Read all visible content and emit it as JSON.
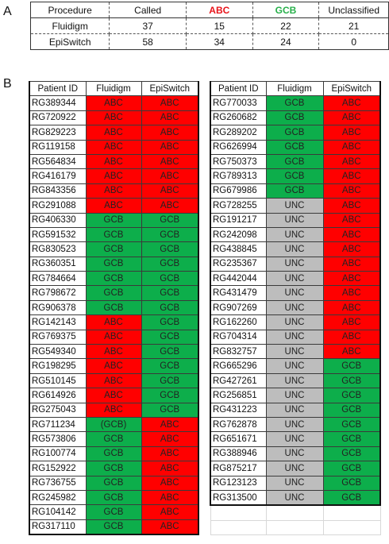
{
  "panel_a": {
    "label": "A",
    "headers": [
      "Procedure",
      "Called",
      "ABC",
      "GCB",
      "Unclassified"
    ],
    "rows": [
      [
        "Fluidigm",
        "37",
        "15",
        "22",
        "21"
      ],
      [
        "EpiSwitch",
        "58",
        "34",
        "24",
        "0"
      ]
    ]
  },
  "panel_b": {
    "label": "B",
    "headers": [
      "Patient ID",
      "Fluidigm",
      "EpiSwitch"
    ],
    "left_rows": [
      [
        "RG389344",
        "ABC",
        "ABC"
      ],
      [
        "RG720922",
        "ABC",
        "ABC"
      ],
      [
        "RG829223",
        "ABC",
        "ABC"
      ],
      [
        "RG119158",
        "ABC",
        "ABC"
      ],
      [
        "RG564834",
        "ABC",
        "ABC"
      ],
      [
        "RG416179",
        "ABC",
        "ABC"
      ],
      [
        "RG843356",
        "ABC",
        "ABC"
      ],
      [
        "RG291088",
        "ABC",
        "ABC"
      ],
      [
        "RG406330",
        "GCB",
        "GCB"
      ],
      [
        "RG591532",
        "GCB",
        "GCB"
      ],
      [
        "RG830523",
        "GCB",
        "GCB"
      ],
      [
        "RG360351",
        "GCB",
        "GCB"
      ],
      [
        "RG784664",
        "GCB",
        "GCB"
      ],
      [
        "RG798672",
        "GCB",
        "GCB"
      ],
      [
        "RG906378",
        "GCB",
        "GCB"
      ],
      [
        "RG142143",
        "ABC",
        "GCB"
      ],
      [
        "RG769375",
        "ABC",
        "GCB"
      ],
      [
        "RG549340",
        "ABC",
        "GCB"
      ],
      [
        "RG198295",
        "ABC",
        "GCB"
      ],
      [
        "RG510145",
        "ABC",
        "GCB"
      ],
      [
        "RG614926",
        "ABC",
        "GCB"
      ],
      [
        "RG275043",
        "ABC",
        "GCB"
      ],
      [
        "RG711234",
        "(GCB)",
        "ABC"
      ],
      [
        "RG573806",
        "GCB",
        "ABC"
      ],
      [
        "RG100774",
        "GCB",
        "ABC"
      ],
      [
        "RG152922",
        "GCB",
        "ABC"
      ],
      [
        "RG736755",
        "GCB",
        "ABC"
      ],
      [
        "RG245982",
        "GCB",
        "ABC"
      ],
      [
        "RG104142",
        "GCB",
        "ABC"
      ],
      [
        "RG317110",
        "GCB",
        "ABC"
      ]
    ],
    "right_rows": [
      [
        "RG770033",
        "GCB",
        "ABC"
      ],
      [
        "RG260682",
        "GCB",
        "ABC"
      ],
      [
        "RG289202",
        "GCB",
        "ABC"
      ],
      [
        "RG626994",
        "GCB",
        "ABC"
      ],
      [
        "RG750373",
        "GCB",
        "ABC"
      ],
      [
        "RG789313",
        "GCB",
        "ABC"
      ],
      [
        "RG679986",
        "GCB",
        "ABC"
      ],
      [
        "RG728255",
        "UNC",
        "ABC"
      ],
      [
        "RG191217",
        "UNC",
        "ABC"
      ],
      [
        "RG242098",
        "UNC",
        "ABC"
      ],
      [
        "RG438845",
        "UNC",
        "ABC"
      ],
      [
        "RG235367",
        "UNC",
        "ABC"
      ],
      [
        "RG442044",
        "UNC",
        "ABC"
      ],
      [
        "RG431479",
        "UNC",
        "ABC"
      ],
      [
        "RG907269",
        "UNC",
        "ABC"
      ],
      [
        "RG162260",
        "UNC",
        "ABC"
      ],
      [
        "RG704314",
        "UNC",
        "ABC"
      ],
      [
        "RG832757",
        "UNC",
        "ABC"
      ],
      [
        "RG665296",
        "UNC",
        "GCB"
      ],
      [
        "RG427261",
        "UNC",
        "GCB"
      ],
      [
        "RG256851",
        "UNC",
        "GCB"
      ],
      [
        "RG431223",
        "UNC",
        "GCB"
      ],
      [
        "RG762878",
        "UNC",
        "GCB"
      ],
      [
        "RG651671",
        "UNC",
        "GCB"
      ],
      [
        "RG388946",
        "UNC",
        "GCB"
      ],
      [
        "RG875217",
        "UNC",
        "GCB"
      ],
      [
        "RG123123",
        "UNC",
        "GCB"
      ],
      [
        "RG313500",
        "UNC",
        "GCB"
      ]
    ],
    "right_blank_rows": 2
  },
  "colors": {
    "ABC": "#ff0000",
    "GCB": "#0dae4b",
    "UNC": "#bdbdbd",
    "abc_header_text": "#e8141a",
    "gcb_header_text": "#27b04a"
  }
}
